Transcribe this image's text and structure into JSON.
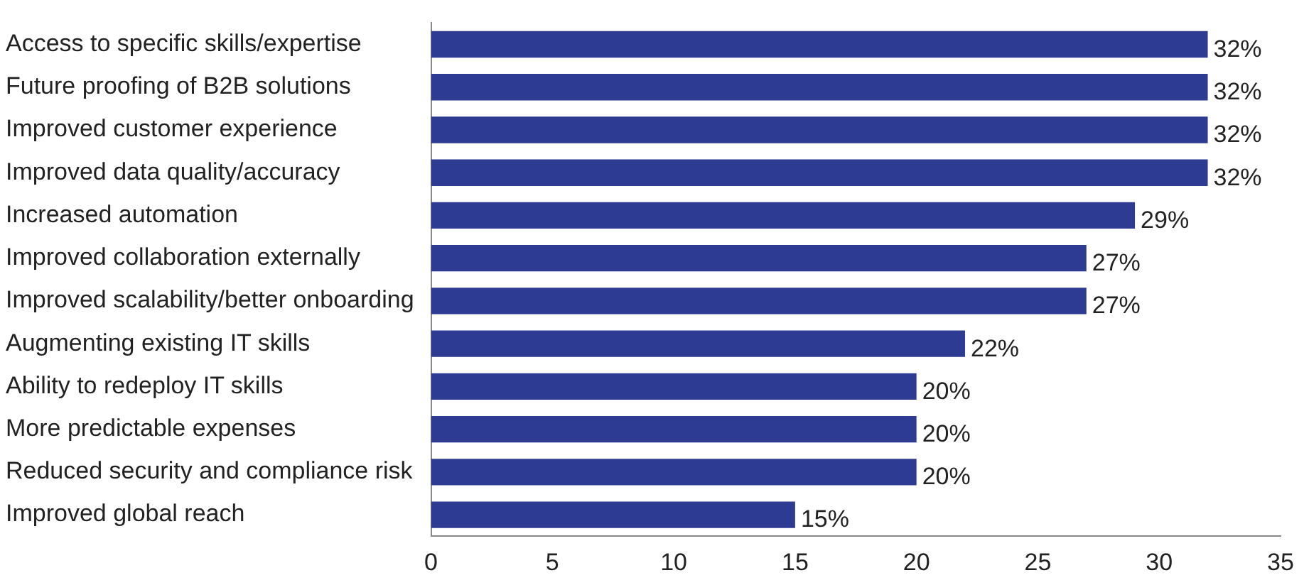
{
  "chart_data": {
    "type": "bar",
    "orientation": "horizontal",
    "categories": [
      "Access to specific skills/expertise",
      "Future proofing of B2B solutions",
      "Improved customer experience",
      "Improved data quality/accuracy",
      "Increased automation",
      "Improved collaboration externally",
      "Improved scalability/better onboarding",
      "Augmenting existing IT skills",
      "Ability to redeploy IT skills",
      "More predictable expenses",
      "Reduced security and compliance risk",
      "Improved global reach"
    ],
    "values": [
      32,
      32,
      32,
      32,
      29,
      27,
      27,
      22,
      20,
      20,
      20,
      15
    ],
    "value_labels": [
      "32%",
      "32%",
      "32%",
      "32%",
      "29%",
      "27%",
      "27%",
      "22%",
      "20%",
      "20%",
      "20%",
      "15%"
    ],
    "color": "#2e3b93",
    "xlim": [
      0,
      35
    ],
    "xticks": [
      0,
      5,
      10,
      15,
      20,
      25,
      30,
      35
    ],
    "grid": false
  }
}
